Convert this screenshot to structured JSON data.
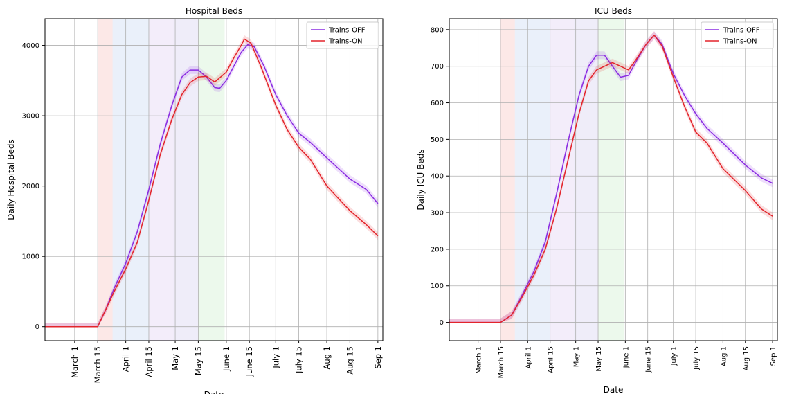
{
  "chart_data": [
    {
      "type": "line",
      "title": "Hospital Beds",
      "xlabel": "Date",
      "ylabel": "Daily Hospital Beds",
      "x_unit": "date (2020)",
      "xlim": [
        "2020-02-12",
        "2020-09-04"
      ],
      "ylim": [
        -200,
        4380
      ],
      "grid": true,
      "legend_position": "upper right",
      "x_ticks": [
        {
          "label": "March 1",
          "date": "2020-03-01"
        },
        {
          "label": "March 15",
          "date": "2020-03-15"
        },
        {
          "label": "April 1",
          "date": "2020-04-01"
        },
        {
          "label": "April 15",
          "date": "2020-04-15"
        },
        {
          "label": "May 1",
          "date": "2020-05-01"
        },
        {
          "label": "May 15",
          "date": "2020-05-15"
        },
        {
          "label": "June 1",
          "date": "2020-06-01"
        },
        {
          "label": "June 15",
          "date": "2020-06-15"
        },
        {
          "label": "July 1",
          "date": "2020-07-01"
        },
        {
          "label": "July 15",
          "date": "2020-07-15"
        },
        {
          "label": "Aug 1",
          "date": "2020-08-01"
        },
        {
          "label": "Aug 15",
          "date": "2020-08-15"
        },
        {
          "label": "Sep 1",
          "date": "2020-09-01"
        }
      ],
      "y_ticks": [
        {
          "label": "0",
          "value": 0
        },
        {
          "label": "1000",
          "value": 1000
        },
        {
          "label": "2000",
          "value": 2000
        },
        {
          "label": "3000",
          "value": 3000
        },
        {
          "label": "4000",
          "value": 4000
        }
      ],
      "shaded_periods": [
        {
          "start": "2020-03-15",
          "end": "2020-03-24",
          "color": "#e8413a"
        },
        {
          "start": "2020-03-24",
          "end": "2020-04-15",
          "color": "#4f86d6"
        },
        {
          "start": "2020-04-15",
          "end": "2020-04-30",
          "color": "#a06ad3"
        },
        {
          "start": "2020-04-30",
          "end": "2020-05-15",
          "color": "#7a6fd0"
        },
        {
          "start": "2020-05-15",
          "end": "2020-05-31",
          "color": "#60cd62"
        }
      ],
      "series": [
        {
          "name": "Trains-OFF",
          "color": "#8a2be2",
          "points": [
            [
              "2020-02-12",
              0
            ],
            [
              "2020-03-15",
              0
            ],
            [
              "2020-03-20",
              250
            ],
            [
              "2020-03-25",
              550
            ],
            [
              "2020-04-01",
              900
            ],
            [
              "2020-04-08",
              1350
            ],
            [
              "2020-04-15",
              1950
            ],
            [
              "2020-04-22",
              2600
            ],
            [
              "2020-04-29",
              3150
            ],
            [
              "2020-05-05",
              3550
            ],
            [
              "2020-05-10",
              3650
            ],
            [
              "2020-05-15",
              3650
            ],
            [
              "2020-05-20",
              3550
            ],
            [
              "2020-05-25",
              3400
            ],
            [
              "2020-05-28",
              3390
            ],
            [
              "2020-06-01",
              3500
            ],
            [
              "2020-06-05",
              3680
            ],
            [
              "2020-06-10",
              3900
            ],
            [
              "2020-06-14",
              4010
            ],
            [
              "2020-06-18",
              3980
            ],
            [
              "2020-06-24",
              3700
            ],
            [
              "2020-07-01",
              3300
            ],
            [
              "2020-07-08",
              3000
            ],
            [
              "2020-07-15",
              2750
            ],
            [
              "2020-07-22",
              2620
            ],
            [
              "2020-08-01",
              2400
            ],
            [
              "2020-08-15",
              2100
            ],
            [
              "2020-08-25",
              1950
            ],
            [
              "2020-09-01",
              1750
            ]
          ]
        },
        {
          "name": "Trains-ON",
          "color": "#e3242b",
          "points": [
            [
              "2020-02-12",
              0
            ],
            [
              "2020-03-15",
              0
            ],
            [
              "2020-03-20",
              250
            ],
            [
              "2020-03-25",
              500
            ],
            [
              "2020-04-01",
              820
            ],
            [
              "2020-04-08",
              1200
            ],
            [
              "2020-04-15",
              1800
            ],
            [
              "2020-04-22",
              2450
            ],
            [
              "2020-04-29",
              2950
            ],
            [
              "2020-05-05",
              3300
            ],
            [
              "2020-05-10",
              3470
            ],
            [
              "2020-05-15",
              3550
            ],
            [
              "2020-05-20",
              3560
            ],
            [
              "2020-05-25",
              3480
            ],
            [
              "2020-06-01",
              3620
            ],
            [
              "2020-06-05",
              3800
            ],
            [
              "2020-06-10",
              4000
            ],
            [
              "2020-06-12",
              4090
            ],
            [
              "2020-06-16",
              4030
            ],
            [
              "2020-06-22",
              3700
            ],
            [
              "2020-07-01",
              3150
            ],
            [
              "2020-07-08",
              2800
            ],
            [
              "2020-07-15",
              2550
            ],
            [
              "2020-07-22",
              2380
            ],
            [
              "2020-08-01",
              2000
            ],
            [
              "2020-08-15",
              1650
            ],
            [
              "2020-08-25",
              1450
            ],
            [
              "2020-09-01",
              1290
            ]
          ]
        }
      ]
    },
    {
      "type": "line",
      "title": "ICU Beds",
      "xlabel": "Date",
      "ylabel": "Daily ICU Beds",
      "x_unit": "date (2020)",
      "xlim": [
        "2020-02-12",
        "2020-09-04"
      ],
      "ylim": [
        -50,
        830
      ],
      "grid": true,
      "legend_position": "upper right",
      "x_ticks": [
        {
          "label": "March 1",
          "date": "2020-03-01"
        },
        {
          "label": "March 15",
          "date": "2020-03-15"
        },
        {
          "label": "April 1",
          "date": "2020-04-01"
        },
        {
          "label": "April 15",
          "date": "2020-04-15"
        },
        {
          "label": "May 1",
          "date": "2020-05-01"
        },
        {
          "label": "May 15",
          "date": "2020-05-15"
        },
        {
          "label": "June 1",
          "date": "2020-06-01"
        },
        {
          "label": "June 15",
          "date": "2020-06-15"
        },
        {
          "label": "July 1",
          "date": "2020-07-01"
        },
        {
          "label": "July 15",
          "date": "2020-07-15"
        },
        {
          "label": "Aug 1",
          "date": "2020-08-01"
        },
        {
          "label": "Aug 15",
          "date": "2020-08-15"
        },
        {
          "label": "Sep 1",
          "date": "2020-09-01"
        }
      ],
      "y_ticks": [
        {
          "label": "0",
          "value": 0
        },
        {
          "label": "100",
          "value": 100
        },
        {
          "label": "200",
          "value": 200
        },
        {
          "label": "300",
          "value": 300
        },
        {
          "label": "400",
          "value": 400
        },
        {
          "label": "500",
          "value": 500
        },
        {
          "label": "600",
          "value": 600
        },
        {
          "label": "700",
          "value": 700
        },
        {
          "label": "800",
          "value": 800
        }
      ],
      "shaded_periods": [
        {
          "start": "2020-03-15",
          "end": "2020-03-24",
          "color": "#e8413a"
        },
        {
          "start": "2020-03-24",
          "end": "2020-04-15",
          "color": "#4f86d6"
        },
        {
          "start": "2020-04-15",
          "end": "2020-04-30",
          "color": "#a06ad3"
        },
        {
          "start": "2020-04-30",
          "end": "2020-05-15",
          "color": "#7a6fd0"
        },
        {
          "start": "2020-05-15",
          "end": "2020-05-31",
          "color": "#60cd62"
        }
      ],
      "series": [
        {
          "name": "Trains-OFF",
          "color": "#8a2be2",
          "points": [
            [
              "2020-02-12",
              0
            ],
            [
              "2020-03-15",
              0
            ],
            [
              "2020-03-22",
              20
            ],
            [
              "2020-03-28",
              70
            ],
            [
              "2020-04-05",
              140
            ],
            [
              "2020-04-12",
              220
            ],
            [
              "2020-04-19",
              350
            ],
            [
              "2020-04-26",
              490
            ],
            [
              "2020-05-03",
              620
            ],
            [
              "2020-05-09",
              700
            ],
            [
              "2020-05-14",
              730
            ],
            [
              "2020-05-19",
              730
            ],
            [
              "2020-05-24",
              700
            ],
            [
              "2020-05-29",
              670
            ],
            [
              "2020-06-03",
              675
            ],
            [
              "2020-06-08",
              715
            ],
            [
              "2020-06-14",
              760
            ],
            [
              "2020-06-19",
              785
            ],
            [
              "2020-06-24",
              760
            ],
            [
              "2020-07-01",
              680
            ],
            [
              "2020-07-08",
              620
            ],
            [
              "2020-07-15",
              570
            ],
            [
              "2020-07-22",
              530
            ],
            [
              "2020-08-01",
              490
            ],
            [
              "2020-08-15",
              430
            ],
            [
              "2020-08-25",
              395
            ],
            [
              "2020-09-01",
              380
            ]
          ]
        },
        {
          "name": "Trains-ON",
          "color": "#e3242b",
          "points": [
            [
              "2020-02-12",
              0
            ],
            [
              "2020-03-15",
              0
            ],
            [
              "2020-03-22",
              20
            ],
            [
              "2020-03-28",
              65
            ],
            [
              "2020-04-05",
              130
            ],
            [
              "2020-04-12",
              200
            ],
            [
              "2020-04-19",
              310
            ],
            [
              "2020-04-26",
              440
            ],
            [
              "2020-05-03",
              570
            ],
            [
              "2020-05-09",
              660
            ],
            [
              "2020-05-14",
              690
            ],
            [
              "2020-05-19",
              700
            ],
            [
              "2020-05-24",
              710
            ],
            [
              "2020-05-29",
              700
            ],
            [
              "2020-06-03",
              690
            ],
            [
              "2020-06-08",
              720
            ],
            [
              "2020-06-14",
              760
            ],
            [
              "2020-06-19",
              785
            ],
            [
              "2020-06-24",
              755
            ],
            [
              "2020-07-01",
              670
            ],
            [
              "2020-07-08",
              590
            ],
            [
              "2020-07-15",
              520
            ],
            [
              "2020-07-22",
              490
            ],
            [
              "2020-08-01",
              420
            ],
            [
              "2020-08-15",
              360
            ],
            [
              "2020-08-25",
              310
            ],
            [
              "2020-09-01",
              290
            ]
          ]
        }
      ]
    }
  ]
}
